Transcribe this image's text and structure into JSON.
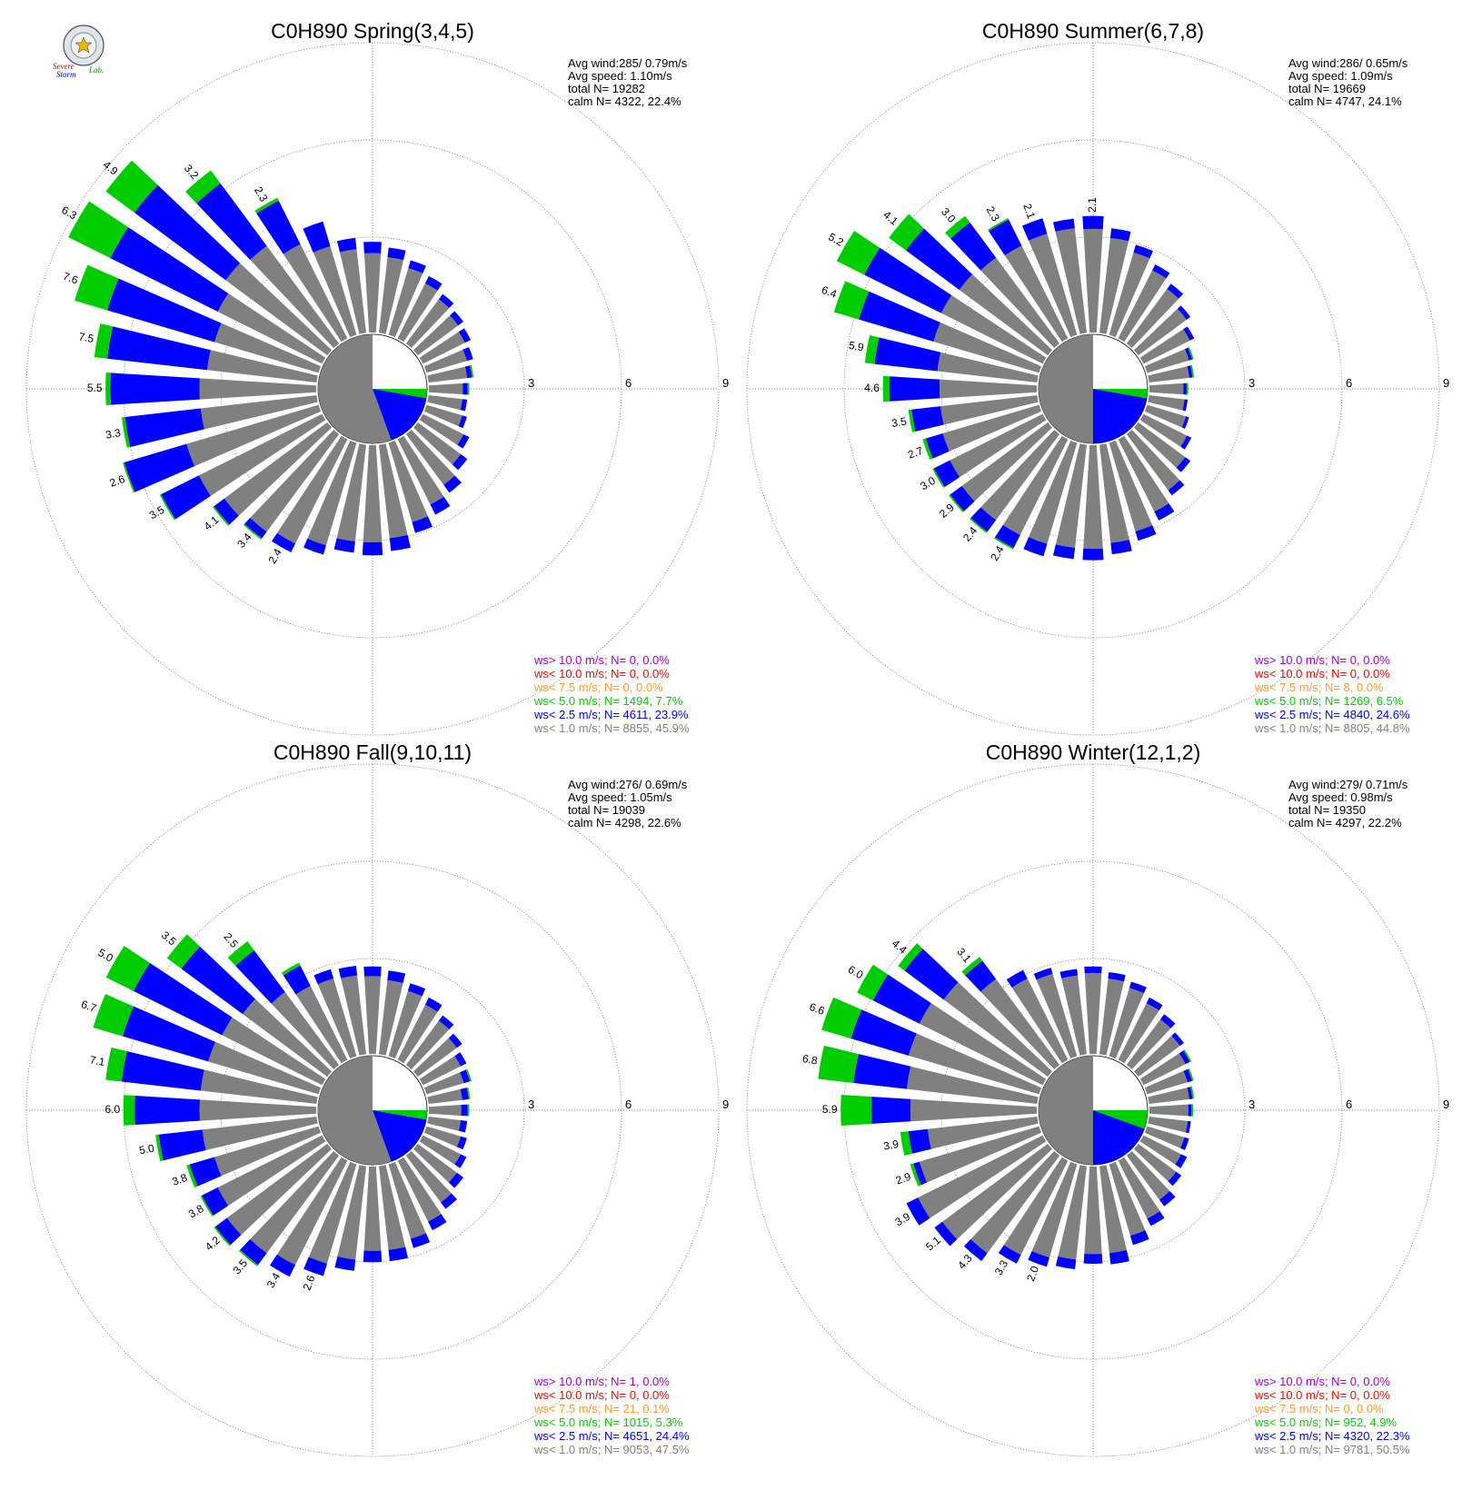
{
  "colors": {
    "bin_lt1": "#808080",
    "bin_lt2_5": "#0000ff",
    "bin_lt5": "#00cc00",
    "bin_lt7_5": "#ff9933",
    "bin_lt10": "#ff0000",
    "bin_gt10": "#9900cc",
    "grid": "#555555"
  },
  "logo": {
    "text_line1": "Severe",
    "text_line2": "Storm",
    "text_lab": "Lab."
  },
  "chart_data": [
    {
      "type": "windrose",
      "title": "C0H890 Spring(3,4,5)",
      "rings": [
        "3",
        "6",
        "9"
      ],
      "rmax": 9,
      "directions_deg": [
        0,
        10,
        20,
        30,
        40,
        50,
        60,
        70,
        80,
        90,
        100,
        110,
        120,
        130,
        140,
        150,
        160,
        170,
        180,
        190,
        200,
        210,
        220,
        230,
        240,
        250,
        260,
        270,
        280,
        290,
        300,
        310,
        320,
        330,
        340,
        350
      ],
      "bins": [
        "ws< 1.0",
        "ws< 2.5",
        "ws< 5.0"
      ],
      "lt1": [
        2.45,
        2.35,
        2.15,
        1.9,
        1.7,
        1.55,
        1.45,
        1.3,
        1.2,
        1.05,
        1.05,
        1.15,
        1.4,
        1.65,
        1.95,
        2.25,
        2.55,
        2.9,
        3.0,
        3.0,
        3.3,
        3.6,
        3.75,
        3.95,
        4.25,
        4.25,
        3.6,
        3.6,
        3.4,
        3.35,
        3.6,
        3.9,
        3.75,
        3.25,
        2.85,
        2.6
      ],
      "lt2_5": [
        0.35,
        0.3,
        0.25,
        0.25,
        0.2,
        0.2,
        0.2,
        0.2,
        0.15,
        0.15,
        0.15,
        0.15,
        0.2,
        0.25,
        0.3,
        0.35,
        0.35,
        0.4,
        0.4,
        0.35,
        0.3,
        0.3,
        0.25,
        0.4,
        1.3,
        2.0,
        2.35,
        2.75,
        3.1,
        3.45,
        3.7,
        3.5,
        2.4,
        1.5,
        0.8,
        0.35
      ],
      "lt5": [
        0.0,
        0.0,
        0.0,
        0.0,
        0.0,
        0.0,
        0.0,
        0.0,
        0.05,
        0.05,
        0.0,
        0.0,
        0.0,
        0.0,
        0.0,
        0.0,
        0.0,
        0.0,
        0.0,
        0.0,
        0.0,
        0.0,
        0.05,
        0.05,
        0.05,
        0.05,
        0.1,
        0.15,
        0.4,
        1.05,
        1.45,
        1.1,
        0.5,
        0.1,
        0.0,
        0.0
      ],
      "labels": [
        [
          "2.3",
          330
        ],
        [
          "3.2",
          320
        ],
        [
          "4.9",
          310
        ],
        [
          "6.3",
          300
        ],
        [
          "7.6",
          290
        ],
        [
          "7.5",
          280
        ],
        [
          "5.5",
          270
        ],
        [
          "3.3",
          260
        ],
        [
          "2.6",
          250
        ],
        [
          "3.5",
          240
        ],
        [
          "4.1",
          230
        ],
        [
          "3.4",
          220
        ],
        [
          "2.4",
          210
        ]
      ],
      "calm_slices": [
        {
          "from": 0,
          "to": 90,
          "bin": "none"
        },
        {
          "from": 90,
          "to": 100,
          "bin": "lt5"
        },
        {
          "from": 100,
          "to": 160,
          "bin": "lt2_5"
        },
        {
          "from": 160,
          "to": 360,
          "bin": "lt1"
        }
      ],
      "stats": [
        "Avg wind:285/ 0.79m/s",
        "Avg speed: 1.10m/s",
        "total N=      19282",
        "calm N=   4322,  22.4%"
      ],
      "legend": [
        {
          "text": "ws> 10.0 m/s; N=     0,  0.0%",
          "color": "#9900cc"
        },
        {
          "text": "ws< 10.0 m/s; N=     0,  0.0%",
          "color": "#ff0000"
        },
        {
          "text": "ws<  7.5 m/s; N=     0,  0.0%",
          "color": "#ff9933"
        },
        {
          "text": "ws<  5.0 m/s; N=  1494,  7.7%",
          "color": "#00cc00"
        },
        {
          "text": "ws<  2.5 m/s; N=  4611, 23.9%",
          "color": "#0000ff"
        },
        {
          "text": "ws<  1.0 m/s; N=  8855, 45.9%",
          "color": "#808080"
        }
      ]
    },
    {
      "type": "windrose",
      "title": "C0H890 Summer(6,7,8)",
      "rings": [
        "3",
        "6",
        "9"
      ],
      "rmax": 9,
      "directions_deg": [
        0,
        10,
        20,
        30,
        40,
        50,
        60,
        70,
        80,
        90,
        100,
        110,
        120,
        130,
        140,
        150,
        160,
        170,
        180,
        190,
        200,
        210,
        220,
        230,
        240,
        250,
        260,
        270,
        280,
        290,
        300,
        310,
        320,
        330,
        340,
        350
      ],
      "bins": [
        "ws< 1.0",
        "ws< 2.5",
        "ws< 5.0"
      ],
      "lt1": [
        3.2,
        2.95,
        2.65,
        2.35,
        2.1,
        1.85,
        1.6,
        1.35,
        1.25,
        1.05,
        1.1,
        1.25,
        1.5,
        1.8,
        2.15,
        2.5,
        2.85,
        3.05,
        3.2,
        3.2,
        3.25,
        3.3,
        3.3,
        3.3,
        3.2,
        3.1,
        3.0,
        3.0,
        3.1,
        3.4,
        3.5,
        3.4,
        3.3,
        3.2,
        3.25,
        3.25
      ],
      "lt2_5": [
        0.4,
        0.3,
        0.25,
        0.2,
        0.2,
        0.15,
        0.15,
        0.1,
        0.1,
        0.1,
        0.1,
        0.1,
        0.15,
        0.2,
        0.2,
        0.3,
        0.3,
        0.35,
        0.35,
        0.35,
        0.4,
        0.45,
        0.45,
        0.45,
        0.55,
        0.55,
        0.9,
        1.55,
        1.95,
        2.4,
        2.65,
        2.05,
        1.35,
        0.9,
        0.5,
        0.3
      ],
      "lt5": [
        0.0,
        0.0,
        0.0,
        0.0,
        0.0,
        0.0,
        0.0,
        0.05,
        0.05,
        0.05,
        0.0,
        0.0,
        0.0,
        0.0,
        0.0,
        0.0,
        0.0,
        0.0,
        0.0,
        0.0,
        0.0,
        0.05,
        0.05,
        0.05,
        0.05,
        0.1,
        0.1,
        0.2,
        0.3,
        0.8,
        0.95,
        0.65,
        0.25,
        0.05,
        0.0,
        0.0
      ],
      "labels": [
        [
          "2.1",
          0
        ],
        [
          "2.1",
          340
        ],
        [
          "2.3",
          330
        ],
        [
          "3.0",
          320
        ],
        [
          "4.1",
          310
        ],
        [
          "5.2",
          300
        ],
        [
          "6.4",
          290
        ],
        [
          "5.9",
          280
        ],
        [
          "4.6",
          270
        ],
        [
          "3.5",
          260
        ],
        [
          "2.7",
          250
        ],
        [
          "3.0",
          240
        ],
        [
          "2.9",
          230
        ],
        [
          "2.4",
          220
        ],
        [
          "2.4",
          210
        ]
      ],
      "calm_slices": [
        {
          "from": 0,
          "to": 90,
          "bin": "none"
        },
        {
          "from": 90,
          "to": 100,
          "bin": "lt5"
        },
        {
          "from": 100,
          "to": 180,
          "bin": "lt2_5"
        },
        {
          "from": 180,
          "to": 360,
          "bin": "lt1"
        }
      ],
      "stats": [
        "Avg wind:286/ 0.65m/s",
        "Avg speed: 1.09m/s",
        "total N=      19669",
        "calm N=   4747,  24.1%"
      ],
      "legend": [
        {
          "text": "ws> 10.0 m/s; N=     0,  0.0%",
          "color": "#9900cc"
        },
        {
          "text": "ws< 10.0 m/s; N=     0,  0.0%",
          "color": "#ff0000"
        },
        {
          "text": "ws<  7.5 m/s; N=     8,  0.0%",
          "color": "#ff9933"
        },
        {
          "text": "ws<  5.0 m/s; N=  1269,  6.5%",
          "color": "#00cc00"
        },
        {
          "text": "ws<  2.5 m/s; N=  4840, 24.6%",
          "color": "#0000ff"
        },
        {
          "text": "ws<  1.0 m/s; N=  8805, 44.8%",
          "color": "#808080"
        }
      ]
    },
    {
      "type": "windrose",
      "title": "C0H890 Fall(9,10,11)",
      "rings": [
        "3",
        "6",
        "9"
      ],
      "rmax": 9,
      "directions_deg": [
        0,
        10,
        20,
        30,
        40,
        50,
        60,
        70,
        80,
        90,
        100,
        110,
        120,
        130,
        140,
        150,
        160,
        170,
        180,
        190,
        200,
        210,
        220,
        230,
        240,
        250,
        260,
        270,
        280,
        290,
        300,
        310,
        320,
        330,
        340,
        350
      ],
      "bins": [
        "ws< 1.0",
        "ws< 2.5",
        "ws< 5.0"
      ],
      "lt1": [
        2.4,
        2.3,
        2.1,
        1.9,
        1.7,
        1.5,
        1.3,
        1.2,
        1.05,
        1.0,
        1.0,
        1.1,
        1.3,
        1.5,
        1.8,
        2.1,
        2.4,
        2.6,
        2.6,
        2.9,
        3.2,
        3.6,
        3.75,
        3.85,
        3.6,
        3.35,
        3.55,
        3.6,
        3.6,
        3.55,
        3.45,
        3.25,
        2.8,
        2.55,
        2.5,
        2.45
      ],
      "lt2_5": [
        0.3,
        0.3,
        0.25,
        0.25,
        0.2,
        0.2,
        0.2,
        0.2,
        0.2,
        0.2,
        0.2,
        0.2,
        0.2,
        0.25,
        0.25,
        0.3,
        0.3,
        0.35,
        0.35,
        0.35,
        0.4,
        0.4,
        0.45,
        0.45,
        0.55,
        0.8,
        1.35,
        2.0,
        2.45,
        2.75,
        3.05,
        2.35,
        1.6,
        0.7,
        0.3,
        0.3
      ],
      "lt5": [
        0.0,
        0.0,
        0.0,
        0.0,
        0.0,
        0.0,
        0.0,
        0.05,
        0.05,
        0.05,
        0.0,
        0.0,
        0.0,
        0.0,
        0.0,
        0.0,
        0.0,
        0.0,
        0.0,
        0.0,
        0.0,
        0.0,
        0.05,
        0.05,
        0.05,
        0.1,
        0.1,
        0.35,
        0.5,
        0.95,
        0.95,
        0.55,
        0.35,
        0.1,
        0.0,
        0.0
      ],
      "labels": [
        [
          "2.5",
          320
        ],
        [
          "3.5",
          310
        ],
        [
          "5.0",
          300
        ],
        [
          "6.7",
          290
        ],
        [
          "7.1",
          280
        ],
        [
          "6.0",
          270
        ],
        [
          "5.0",
          260
        ],
        [
          "3.8",
          250
        ],
        [
          "3.8",
          240
        ],
        [
          "4.2",
          230
        ],
        [
          "3.5",
          220
        ],
        [
          "3.4",
          210
        ],
        [
          "2.6",
          200
        ]
      ],
      "calm_slices": [
        {
          "from": 0,
          "to": 90,
          "bin": "none"
        },
        {
          "from": 90,
          "to": 100,
          "bin": "lt5"
        },
        {
          "from": 100,
          "to": 160,
          "bin": "lt2_5"
        },
        {
          "from": 160,
          "to": 360,
          "bin": "lt1"
        }
      ],
      "stats": [
        "Avg wind:276/ 0.69m/s",
        "Avg speed: 1.05m/s",
        "total N=      19039",
        "calm N=   4298,  22.6%"
      ],
      "legend": [
        {
          "text": "ws> 10.0 m/s; N=     1,  0.0%",
          "color": "#9900cc"
        },
        {
          "text": "ws< 10.0 m/s; N=     0,  0.0%",
          "color": "#ff0000"
        },
        {
          "text": "ws<  7.5 m/s; N=    21,  0.1%",
          "color": "#ff9933"
        },
        {
          "text": "ws<  5.0 m/s; N=  1015,  5.3%",
          "color": "#00cc00"
        },
        {
          "text": "ws<  2.5 m/s; N=  4651, 24.4%",
          "color": "#0000ff"
        },
        {
          "text": "ws<  1.0 m/s; N=  9053, 47.5%",
          "color": "#808080"
        }
      ]
    },
    {
      "type": "windrose",
      "title": "C0H890 Winter(12,1,2)",
      "rings": [
        "3",
        "6",
        "9"
      ],
      "rmax": 9,
      "directions_deg": [
        0,
        10,
        20,
        30,
        40,
        50,
        60,
        70,
        80,
        90,
        100,
        110,
        120,
        130,
        140,
        150,
        160,
        170,
        180,
        190,
        200,
        210,
        220,
        230,
        240,
        250,
        260,
        270,
        280,
        290,
        300,
        310,
        320,
        330,
        340,
        350
      ],
      "bins": [
        "ws< 1.0",
        "ws< 2.5",
        "ws< 5.0"
      ],
      "lt1": [
        2.5,
        2.35,
        2.2,
        1.95,
        1.75,
        1.6,
        1.45,
        1.3,
        1.25,
        1.2,
        1.2,
        1.2,
        1.3,
        1.45,
        1.7,
        2.0,
        2.3,
        2.7,
        2.7,
        2.9,
        3.0,
        3.25,
        3.75,
        4.05,
        4.3,
        3.85,
        3.4,
        3.9,
        4.05,
        4.2,
        4.25,
        4.0,
        3.3,
        2.8,
        2.65,
        2.45
      ],
      "lt2_5": [
        0.2,
        0.2,
        0.2,
        0.2,
        0.2,
        0.15,
        0.15,
        0.15,
        0.1,
        0.1,
        0.1,
        0.15,
        0.2,
        0.2,
        0.25,
        0.25,
        0.3,
        0.35,
        0.3,
        0.3,
        0.3,
        0.3,
        0.3,
        0.3,
        0.4,
        0.2,
        0.6,
        1.2,
        1.65,
        1.85,
        1.6,
        1.5,
        0.7,
        0.3,
        0.2,
        0.2
      ],
      "lt5": [
        0.0,
        0.0,
        0.0,
        0.0,
        0.0,
        0.0,
        0.05,
        0.05,
        0.05,
        0.05,
        0.0,
        0.0,
        0.0,
        0.0,
        0.0,
        0.0,
        0.0,
        0.0,
        0.0,
        0.0,
        0.0,
        0.0,
        0.0,
        0.0,
        0.0,
        0.1,
        0.25,
        0.95,
        1.1,
        0.95,
        0.55,
        0.25,
        0.15,
        0.0,
        0.0,
        0.0
      ],
      "labels": [
        [
          "3.1",
          320
        ],
        [
          "4.4",
          310
        ],
        [
          "6.0",
          300
        ],
        [
          "6.6",
          290
        ],
        [
          "6.8",
          280
        ],
        [
          "5.9",
          270
        ],
        [
          "3.9",
          260
        ],
        [
          "2.9",
          250
        ],
        [
          "3.9",
          240
        ],
        [
          "5.1",
          230
        ],
        [
          "4.3",
          220
        ],
        [
          "3.3",
          210
        ],
        [
          "2.0",
          200
        ]
      ],
      "calm_slices": [
        {
          "from": 0,
          "to": 90,
          "bin": "none"
        },
        {
          "from": 90,
          "to": 110,
          "bin": "lt5"
        },
        {
          "from": 110,
          "to": 180,
          "bin": "lt2_5"
        },
        {
          "from": 180,
          "to": 360,
          "bin": "lt1"
        }
      ],
      "stats": [
        "Avg wind:279/ 0.71m/s",
        "Avg speed: 0.98m/s",
        "total N=      19350",
        "calm N=   4297,  22.2%"
      ],
      "legend": [
        {
          "text": "ws> 10.0 m/s; N=     0,  0.0%",
          "color": "#9900cc"
        },
        {
          "text": "ws< 10.0 m/s; N=     0,  0.0%",
          "color": "#ff0000"
        },
        {
          "text": "ws<  7.5 m/s; N=     0,  0.0%",
          "color": "#ff9933"
        },
        {
          "text": "ws<  5.0 m/s; N=   952,  4.9%",
          "color": "#00cc00"
        },
        {
          "text": "ws<  2.5 m/s; N=  4320, 22.3%",
          "color": "#0000ff"
        },
        {
          "text": "ws<  1.0 m/s; N=  9781, 50.5%",
          "color": "#808080"
        }
      ]
    }
  ]
}
